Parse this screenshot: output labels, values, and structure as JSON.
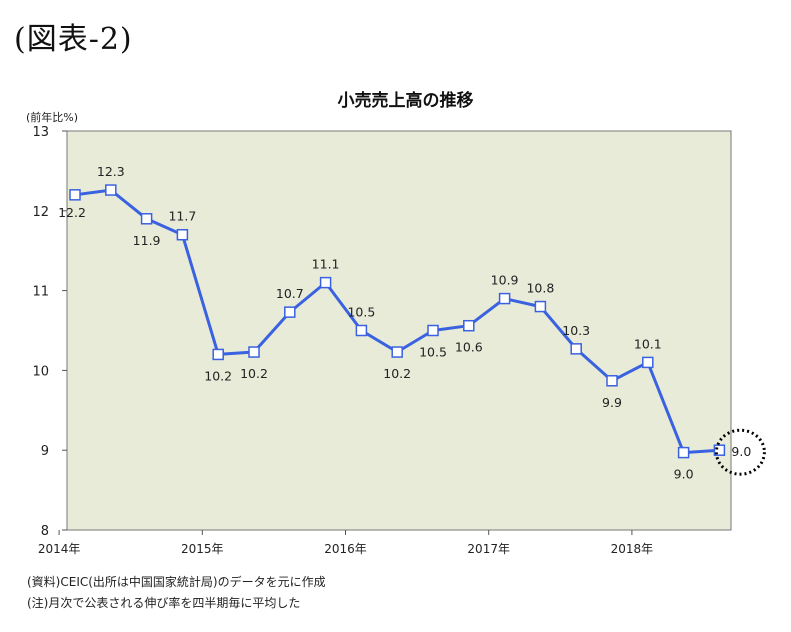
{
  "figure_label": "(図表-2)",
  "chart_data": {
    "type": "line",
    "title": "小売売上高の推移",
    "ylabel": "(前年比%)",
    "xlabel": "",
    "ylim": [
      8,
      13
    ],
    "y_ticks": [
      "8",
      "9",
      "10",
      "11",
      "12",
      "13"
    ],
    "x_tick_labels": [
      "2014年",
      "2015年",
      "2016年",
      "2017年",
      "2018年"
    ],
    "x_tick_years": [
      2014,
      2015,
      2016,
      2017,
      2018
    ],
    "x": [
      "2014Q1",
      "2014Q2",
      "2014Q3",
      "2014Q4",
      "2015Q1",
      "2015Q2",
      "2015Q3",
      "2015Q4",
      "2016Q1",
      "2016Q2",
      "2016Q3",
      "2016Q4",
      "2017Q1",
      "2017Q2",
      "2017Q3",
      "2017Q4",
      "2018Q1",
      "2018Q2",
      "2018Q3"
    ],
    "values": [
      12.2,
      12.26,
      11.9,
      11.7,
      10.2,
      10.23,
      10.73,
      11.1,
      10.5,
      10.23,
      10.5,
      10.56,
      10.9,
      10.8,
      10.27,
      9.87,
      10.1,
      8.97,
      9.0
    ],
    "data_labels": [
      "12.2",
      "12.3",
      "11.9",
      "11.7",
      "10.2",
      "10.2",
      "10.7",
      "11.1",
      "10.5",
      "10.2",
      "10.5",
      "10.6",
      "10.9",
      "10.8",
      "10.3",
      "9.9",
      "10.1",
      "9.0",
      "9.0"
    ],
    "highlight_index": 18,
    "grid": false,
    "colors": {
      "line": "#3a62e0",
      "plot_bg": "#e9ebd9",
      "marker_fill": "#ffffff",
      "highlight_circle": "#000000"
    }
  },
  "notes": [
    "(資料)CEIC(出所は中国国家統計局)のデータを元に作成",
    "(注)月次で公表される伸び率を四半期毎に平均した"
  ]
}
